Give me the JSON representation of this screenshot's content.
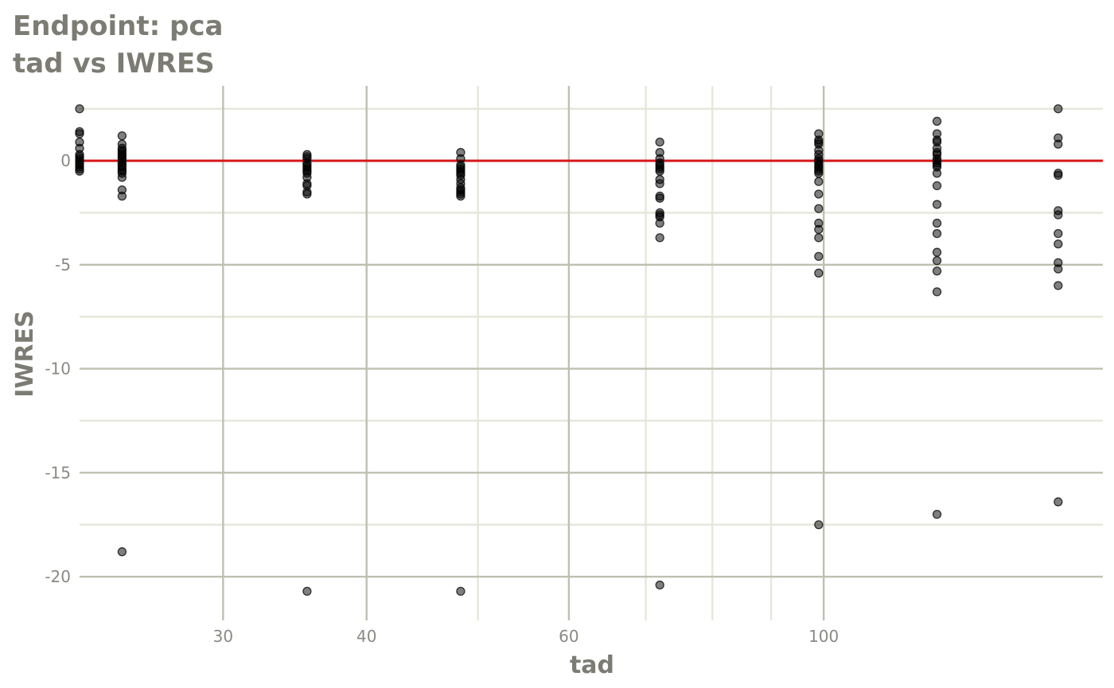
{
  "chart_data": {
    "type": "scatter",
    "title": "Endpoint:  pca",
    "subtitle": "tad vs IWRES",
    "xlabel": "tad",
    "ylabel": "IWRES",
    "x_scale": "log",
    "xlim": [
      22.5,
      175
    ],
    "ylim": [
      -22.1,
      3.6
    ],
    "x_ticks": [
      30,
      40,
      60,
      100
    ],
    "x_tick_labels": [
      "30",
      "40",
      "60",
      "100"
    ],
    "x_minor_ticks": [
      50,
      70,
      80,
      90
    ],
    "y_ticks": [
      0,
      -5,
      -10,
      -15,
      -20
    ],
    "y_tick_labels": [
      "0",
      "-5",
      "-10",
      "-15",
      "-20"
    ],
    "y_minor_ticks": [
      2.5,
      -2.5,
      -7.5,
      -12.5,
      -17.5
    ],
    "grid": true,
    "reference_line": {
      "y": 0,
      "color": "#d7191c"
    },
    "point_color": "#000000",
    "groups": [
      {
        "x": 22.5,
        "y": [
          2.5,
          1.4,
          1.3,
          0.9,
          0.6,
          0.3,
          0.2,
          0.1,
          0.0,
          -0.1,
          -0.2,
          -0.3,
          -0.4,
          -0.5
        ]
      },
      {
        "x": 24.5,
        "y": [
          1.2,
          0.8,
          0.6,
          0.5,
          0.4,
          0.3,
          0.2,
          0.1,
          0.0,
          -0.1,
          -0.2,
          -0.3,
          -0.4,
          -0.5,
          -0.6,
          -0.8,
          -1.4,
          -1.7,
          -18.8
        ]
      },
      {
        "x": 35.5,
        "y": [
          0.3,
          0.2,
          0.1,
          -0.1,
          -0.2,
          -0.3,
          -0.4,
          -0.5,
          -0.6,
          -0.8,
          -1.1,
          -1.2,
          -1.5,
          -1.6,
          -20.7
        ]
      },
      {
        "x": 48.3,
        "y": [
          0.4,
          0.1,
          -0.2,
          -0.3,
          -0.4,
          -0.5,
          -0.6,
          -0.7,
          -0.9,
          -1.1,
          -1.3,
          -1.4,
          -1.5,
          -1.6,
          -1.7,
          -20.7
        ]
      },
      {
        "x": 72.0,
        "y": [
          0.9,
          0.4,
          0.1,
          -0.1,
          -0.2,
          -0.3,
          -0.4,
          -0.5,
          -0.9,
          -1.1,
          -1.7,
          -1.8,
          -2.5,
          -2.6,
          -2.7,
          -3.0,
          -3.7,
          -20.4
        ]
      },
      {
        "x": 99.0,
        "y": [
          1.3,
          1.0,
          0.9,
          0.8,
          0.5,
          0.3,
          0.1,
          0.0,
          -0.1,
          -0.2,
          -0.3,
          -0.4,
          -0.5,
          -0.6,
          -1.0,
          -1.6,
          -2.3,
          -3.0,
          -3.3,
          -3.7,
          -4.6,
          -5.4,
          -17.5
        ]
      },
      {
        "x": 125.5,
        "y": [
          1.9,
          1.3,
          1.0,
          0.9,
          0.6,
          0.4,
          0.3,
          0.1,
          0.0,
          -0.1,
          -0.2,
          -0.3,
          -0.6,
          -1.2,
          -2.1,
          -3.0,
          -3.5,
          -4.4,
          -4.8,
          -5.3,
          -6.3,
          -17.0
        ]
      },
      {
        "x": 160.0,
        "y": [
          2.5,
          1.1,
          0.8,
          -0.6,
          -0.7,
          -2.4,
          -2.6,
          -3.5,
          -4.0,
          -4.9,
          -5.2,
          -6.0,
          -16.4
        ]
      }
    ]
  }
}
